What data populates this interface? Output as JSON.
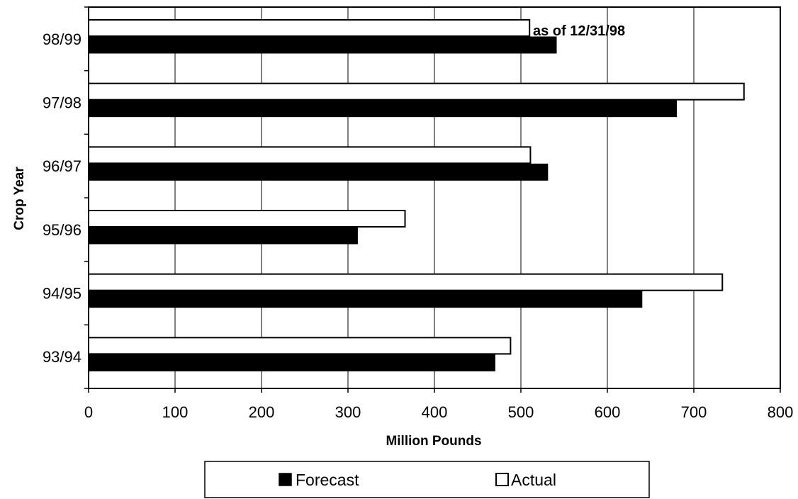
{
  "chart_data": {
    "type": "bar",
    "orientation": "horizontal",
    "categories": [
      "98/99",
      "97/98",
      "96/97",
      "95/96",
      "94/95",
      "93/94"
    ],
    "series": [
      {
        "name": "Actual",
        "color": "#ffffff",
        "values": [
          510,
          758,
          511,
          366,
          733,
          488
        ]
      },
      {
        "name": "Forecast",
        "color": "#000000",
        "values": [
          541,
          680,
          531,
          311,
          640,
          470
        ]
      }
    ],
    "xlabel": "Million Pounds",
    "ylabel": "Crop Year",
    "xlim": [
      0,
      800
    ],
    "xticks": [
      "0",
      "100",
      "200",
      "300",
      "400",
      "500",
      "600",
      "700",
      "800"
    ],
    "grid": "vertical",
    "annotation": "as of 12/31/98",
    "legend": {
      "position": "bottom",
      "entries": [
        "Forecast",
        "Actual"
      ]
    }
  }
}
